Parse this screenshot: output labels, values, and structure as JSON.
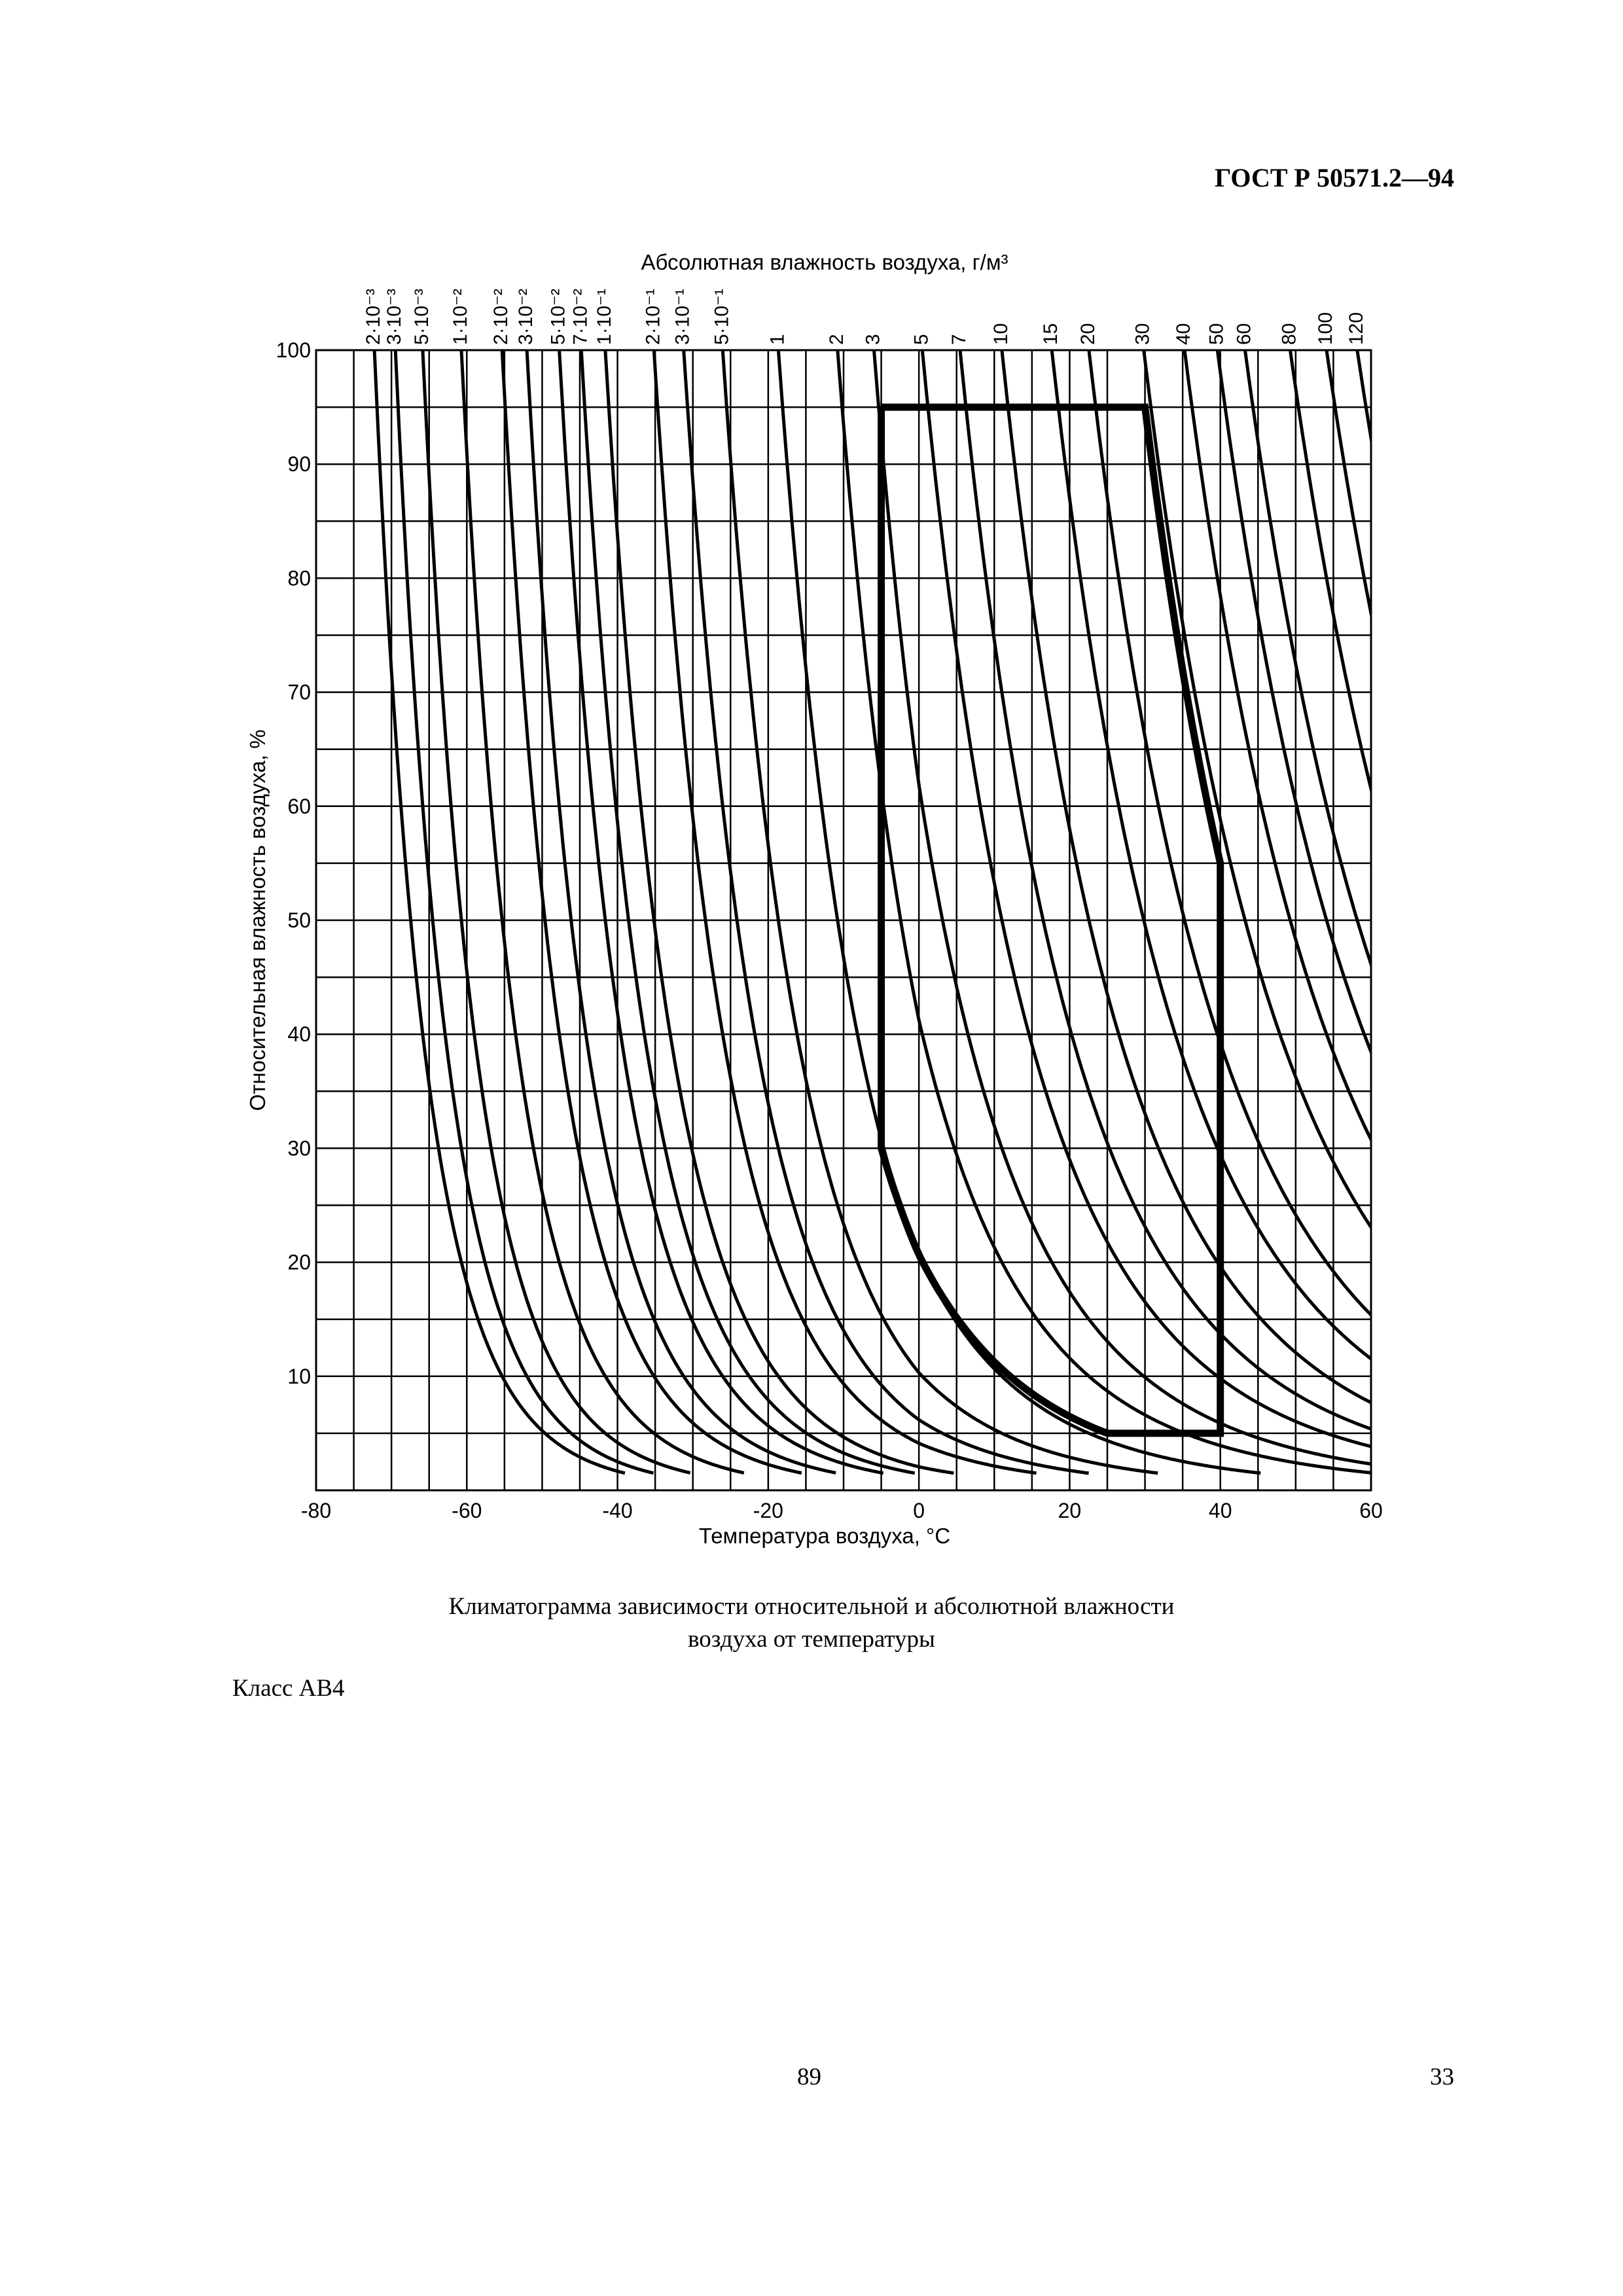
{
  "document": {
    "header": "ГОСТ Р 50571.2—94",
    "caption_line1": "Климатограмма зависимости относительной и абсолютной влажности",
    "caption_line2": "воздуха от температуры",
    "class_label": "Класс АВ4",
    "footer_left": "89",
    "footer_right": "33"
  },
  "chart_data": {
    "type": "line",
    "title": "Абсолютная влажность воздуха, г/м³",
    "xlabel": "Температура воздуха, °С",
    "ylabel": "Относительная влажность воздуха, %",
    "xlim": [
      -80,
      60
    ],
    "ylim": [
      0,
      100
    ],
    "x_ticks": [
      -80,
      -60,
      -40,
      -20,
      0,
      20,
      40,
      60
    ],
    "y_ticks": [
      10,
      20,
      30,
      40,
      50,
      60,
      70,
      80,
      90,
      100
    ],
    "x_grid_step": 5,
    "y_grid_step": 5,
    "grid": true,
    "absolute_humidity_units": "г/м³",
    "absolute_humidity_lines": [
      {
        "label": "2·10⁻³",
        "value": 0.002
      },
      {
        "label": "3·10⁻³",
        "value": 0.003
      },
      {
        "label": "5·10⁻³",
        "value": 0.005
      },
      {
        "label": "1·10⁻²",
        "value": 0.01
      },
      {
        "label": "2·10⁻²",
        "value": 0.02
      },
      {
        "label": "3·10⁻²",
        "value": 0.03
      },
      {
        "label": "5·10⁻²",
        "value": 0.05
      },
      {
        "label": "7·10⁻²",
        "value": 0.07
      },
      {
        "label": "1·10⁻¹",
        "value": 0.1
      },
      {
        "label": "2·10⁻¹",
        "value": 0.2
      },
      {
        "label": "3·10⁻¹",
        "value": 0.3
      },
      {
        "label": "5·10⁻¹",
        "value": 0.5
      },
      {
        "label": "1",
        "value": 1
      },
      {
        "label": "2",
        "value": 2
      },
      {
        "label": "3",
        "value": 3
      },
      {
        "label": "5",
        "value": 5
      },
      {
        "label": "7",
        "value": 7
      },
      {
        "label": "10",
        "value": 10
      },
      {
        "label": "15",
        "value": 15
      },
      {
        "label": "20",
        "value": 20
      },
      {
        "label": "30",
        "value": 30
      },
      {
        "label": "40",
        "value": 40
      },
      {
        "label": "50",
        "value": 50
      },
      {
        "label": "60",
        "value": 60
      },
      {
        "label": "80",
        "value": 80
      },
      {
        "label": "100",
        "value": 100
      },
      {
        "label": "120",
        "value": 120
      }
    ],
    "class_boundary": {
      "label": "Класс АВ4",
      "points": [
        [
          -5,
          95
        ],
        [
          30,
          95
        ],
        [
          40,
          55
        ],
        [
          40,
          5
        ],
        [
          25,
          5
        ],
        [
          -5,
          30
        ],
        [
          -5,
          95
        ]
      ]
    }
  }
}
